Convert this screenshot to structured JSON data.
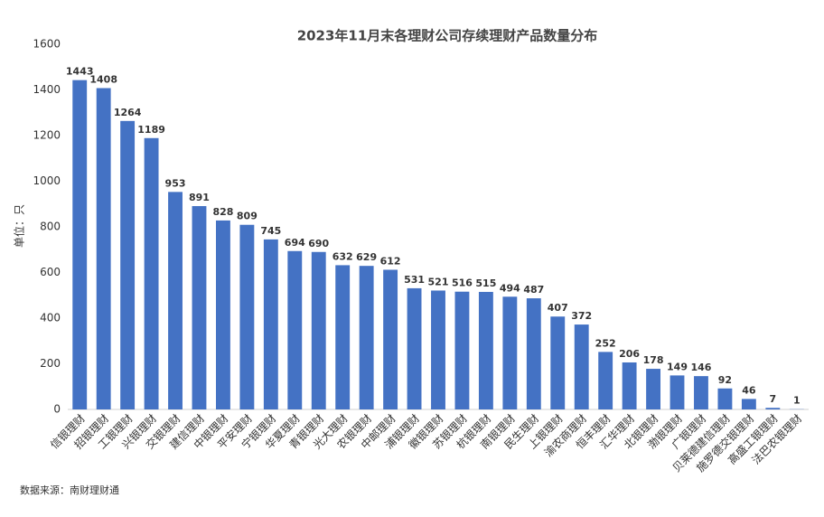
{
  "chart_data": {
    "type": "bar",
    "title": "2023年11月末各理财公司存续理财产品数量分布",
    "y_label": "单位：只",
    "source": "数据来源：南财理财通",
    "categories": [
      "信银理财",
      "招银理财",
      "工银理财",
      "兴银理财",
      "交银理财",
      "建信理财",
      "中银理财",
      "平安理财",
      "宁银理财",
      "华夏理财",
      "青银理财",
      "光大理财",
      "农银理财",
      "中邮理财",
      "浦银理财",
      "徽银理财",
      "苏银理财",
      "杭银理财",
      "南银理财",
      "民生理财",
      "上银理财",
      "渝农商理财",
      "恒丰理财",
      "汇华理财",
      "北银理财",
      "渤银理财",
      "广银理财",
      "贝莱德建信理财",
      "施罗德交银理财",
      "高盛工银理财",
      "法巴农银理财"
    ],
    "values": [
      1443,
      1408,
      1264,
      1189,
      953,
      891,
      828,
      809,
      745,
      694,
      690,
      632,
      629,
      612,
      531,
      521,
      516,
      515,
      494,
      487,
      407,
      372,
      252,
      206,
      178,
      149,
      146,
      92,
      46,
      7,
      1
    ],
    "color": "#4472c4",
    "ylim": [
      0,
      1600
    ],
    "yticks": [
      0,
      200,
      400,
      600,
      800,
      1000,
      1200,
      1400,
      1600
    ],
    "grid": false
  }
}
